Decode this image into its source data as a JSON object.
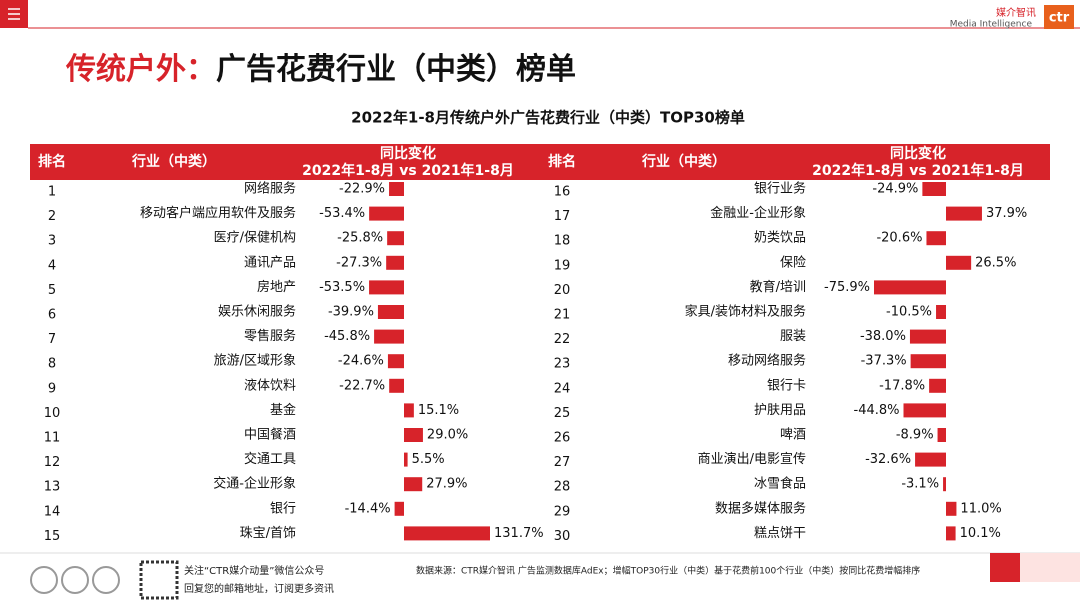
{
  "header": {
    "logo_cn": "媒介智讯",
    "logo_en": "Media Intelligence",
    "logo_mark": "ctr"
  },
  "title": {
    "prefix": "传统户外：",
    "main": "广告花费行业（中类）榜单"
  },
  "table": {
    "caption": "2022年1-8月传统户外广告花费行业（中类）TOP30榜单",
    "rank_header": "排名",
    "industry_header": "行业（中类）",
    "change_header": "同比变化",
    "change_period": "2022年1-8月 vs 2021年1-8月",
    "rows": [
      {
        "rank": 1,
        "industry": "网络服务",
        "value": -22.9,
        "value_label": "-22.9%"
      },
      {
        "rank": 2,
        "industry": "移动客户端应用软件及服务",
        "value": -53.4,
        "value_label": "-53.4%"
      },
      {
        "rank": 3,
        "industry": "医疗/保健机构",
        "value": -25.8,
        "value_label": "-25.8%"
      },
      {
        "rank": 4,
        "industry": "通讯产品",
        "value": -27.3,
        "value_label": "-27.3%"
      },
      {
        "rank": 5,
        "industry": "房地产",
        "value": -53.5,
        "value_label": "-53.5%"
      },
      {
        "rank": 6,
        "industry": "娱乐休闲服务",
        "value": -39.9,
        "value_label": "-39.9%"
      },
      {
        "rank": 7,
        "industry": "零售服务",
        "value": -45.8,
        "value_label": "-45.8%"
      },
      {
        "rank": 8,
        "industry": "旅游/区域形象",
        "value": -24.6,
        "value_label": "-24.6%"
      },
      {
        "rank": 9,
        "industry": "液体饮料",
        "value": -22.7,
        "value_label": "-22.7%"
      },
      {
        "rank": 10,
        "industry": "基金",
        "value": 15.1,
        "value_label": "15.1%"
      },
      {
        "rank": 11,
        "industry": "中国餐酒",
        "value": 29.0,
        "value_label": "29.0%"
      },
      {
        "rank": 12,
        "industry": "交通工具",
        "value": 5.5,
        "value_label": "5.5%"
      },
      {
        "rank": 13,
        "industry": "交通-企业形象",
        "value": 27.9,
        "value_label": "27.9%"
      },
      {
        "rank": 14,
        "industry": "银行",
        "value": -14.4,
        "value_label": "-14.4%"
      },
      {
        "rank": 15,
        "industry": "珠宝/首饰",
        "value": 131.7,
        "value_label": "131.7%"
      },
      {
        "rank": 16,
        "industry": "银行业务",
        "value": -24.9,
        "value_label": "-24.9%"
      },
      {
        "rank": 17,
        "industry": "金融业-企业形象",
        "value": 37.9,
        "value_label": "37.9%"
      },
      {
        "rank": 18,
        "industry": "奶类饮品",
        "value": -20.6,
        "value_label": "-20.6%"
      },
      {
        "rank": 19,
        "industry": "保险",
        "value": 26.5,
        "value_label": "26.5%"
      },
      {
        "rank": 20,
        "industry": "教育/培训",
        "value": -75.9,
        "value_label": "-75.9%"
      },
      {
        "rank": 21,
        "industry": "家具/装饰材料及服务",
        "value": -10.5,
        "value_label": "-10.5%"
      },
      {
        "rank": 22,
        "industry": "服装",
        "value": -38.0,
        "value_label": "-38.0%"
      },
      {
        "rank": 23,
        "industry": "移动网络服务",
        "value": -37.3,
        "value_label": "-37.3%"
      },
      {
        "rank": 24,
        "industry": "银行卡",
        "value": -17.8,
        "value_label": "-17.8%"
      },
      {
        "rank": 25,
        "industry": "护肤用品",
        "value": -44.8,
        "value_label": "-44.8%"
      },
      {
        "rank": 26,
        "industry": "啤酒",
        "value": -8.9,
        "value_label": "-8.9%"
      },
      {
        "rank": 27,
        "industry": "商业演出/电影宣传",
        "value": -32.6,
        "value_label": "-32.6%"
      },
      {
        "rank": 28,
        "industry": "冰雪食品",
        "value": -3.1,
        "value_label": "-3.1%"
      },
      {
        "rank": 29,
        "industry": "数据多媒体服务",
        "value": 11.0,
        "value_label": "11.0%"
      },
      {
        "rank": 30,
        "industry": "糕点饼干",
        "value": 10.1,
        "value_label": "10.1%"
      }
    ]
  },
  "footer": {
    "follow": "关注“CTR媒介动量”微信公众号",
    "subscribe": "回复您的邮箱地址，订阅更多资讯",
    "source": "数据来源：CTR媒介智讯 广告监测数据库AdEx；增幅TOP30行业（中类）基于花费前100个行业（中类）按同比花费增幅排序"
  }
}
